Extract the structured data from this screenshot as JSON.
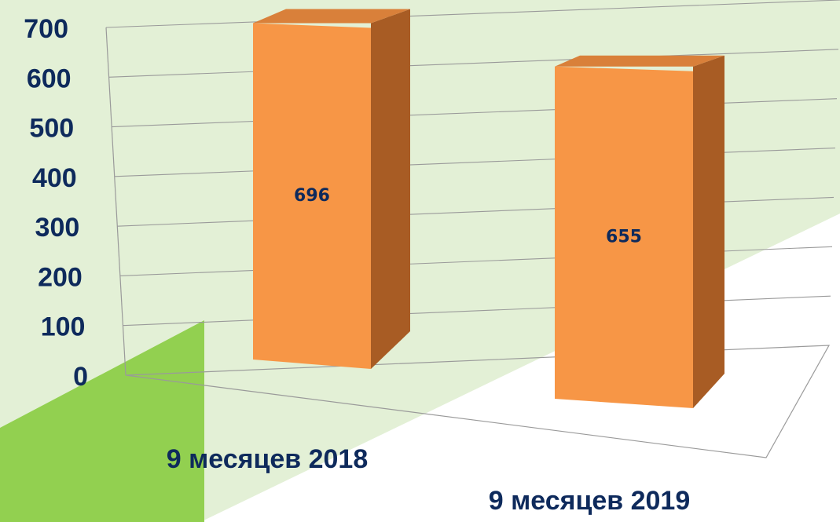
{
  "chart_data": {
    "type": "bar3d",
    "categories": [
      "9 месяцев 2018",
      "9 месяцев 2019"
    ],
    "values": [
      696,
      655
    ],
    "color": "#f79646",
    "ylim": [
      0,
      700
    ],
    "yticks": [
      0,
      100,
      200,
      300,
      400,
      500,
      600,
      700
    ],
    "grid": true
  }
}
